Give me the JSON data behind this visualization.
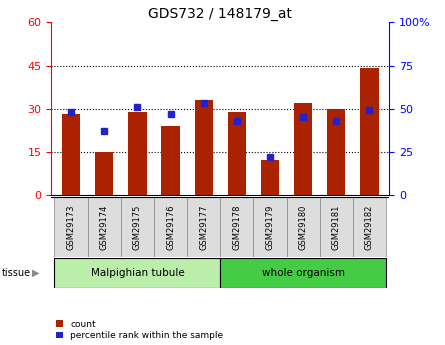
{
  "title": "GDS732 / 148179_at",
  "samples": [
    "GSM29173",
    "GSM29174",
    "GSM29175",
    "GSM29176",
    "GSM29177",
    "GSM29178",
    "GSM29179",
    "GSM29180",
    "GSM29181",
    "GSM29182"
  ],
  "count": [
    28,
    15,
    29,
    24,
    33,
    29,
    12,
    32,
    30,
    44
  ],
  "percentile": [
    48,
    37,
    51,
    47,
    53,
    43,
    22,
    45,
    43,
    49
  ],
  "left_ylim": [
    0,
    60
  ],
  "right_ylim": [
    0,
    100
  ],
  "left_yticks": [
    0,
    15,
    30,
    45,
    60
  ],
  "right_yticks": [
    0,
    25,
    50,
    75,
    100
  ],
  "right_yticklabels": [
    "0",
    "25",
    "50",
    "75",
    "100%"
  ],
  "bar_color": "#AA2200",
  "dot_color": "#2222CC",
  "tissue_groups": [
    {
      "label": "Malpighian tubule",
      "start": 0,
      "end": 5,
      "color": "#BBEEAA"
    },
    {
      "label": "whole organism",
      "start": 5,
      "end": 10,
      "color": "#44CC44"
    }
  ],
  "legend_count_label": "count",
  "legend_pct_label": "percentile rank within the sample",
  "tissue_label": "tissue",
  "bar_width": 0.55,
  "title_fontsize": 10,
  "axis_fontsize": 8,
  "label_fontsize": 6.5
}
